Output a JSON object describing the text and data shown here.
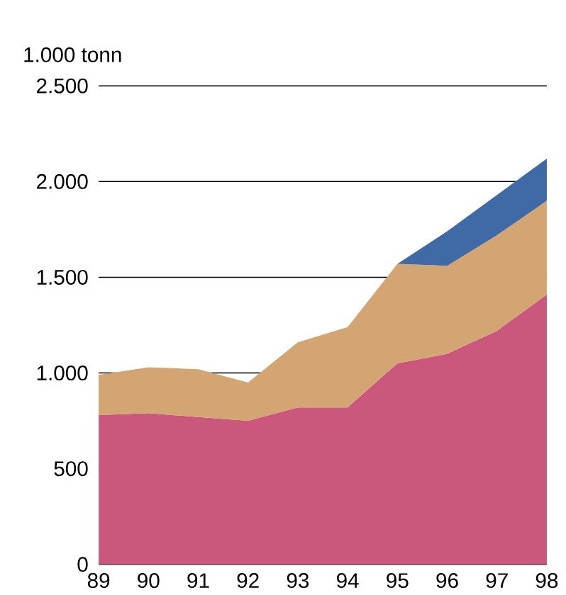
{
  "chart_data": {
    "type": "area",
    "stacked": true,
    "ylabel": "1.000 tonn",
    "categories": [
      "89",
      "90",
      "91",
      "92",
      "93",
      "94",
      "95",
      "96",
      "97",
      "98"
    ],
    "series": [
      {
        "color": "#c9587c",
        "values": [
          780,
          790,
          770,
          750,
          820,
          820,
          1050,
          1100,
          1220,
          1410
        ]
      },
      {
        "color": "#d2a573",
        "values": [
          210,
          240,
          250,
          200,
          340,
          420,
          520,
          460,
          500,
          490
        ]
      },
      {
        "color": "#3f6aa5",
        "values": [
          null,
          null,
          null,
          null,
          null,
          null,
          0,
          180,
          210,
          220
        ]
      }
    ],
    "ylim": [
      0,
      2500
    ],
    "yticks": [
      0,
      500,
      {
        "value": 1000,
        "label": "1.000"
      },
      {
        "value": 1500,
        "label": "1.500"
      },
      {
        "value": 2000,
        "label": "2.000"
      },
      {
        "value": 2500,
        "label": "2.500"
      }
    ],
    "grid": "y"
  }
}
